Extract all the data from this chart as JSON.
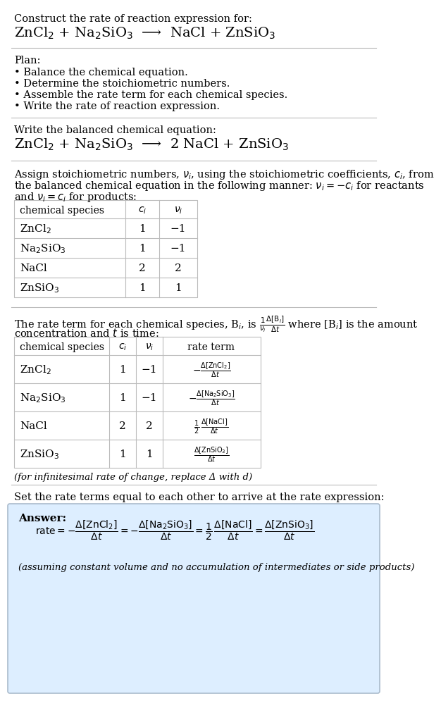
{
  "title_text": "Construct the rate of reaction expression for:",
  "reaction_unbalanced": "ZnCl$_2$ + Na$_2$SiO$_3$  ⟶  NaCl + ZnSiO$_3$",
  "plan_header": "Plan:",
  "plan_items": [
    "• Balance the chemical equation.",
    "• Determine the stoichiometric numbers.",
    "• Assemble the rate term for each chemical species.",
    "• Write the rate of reaction expression."
  ],
  "balanced_header": "Write the balanced chemical equation:",
  "reaction_balanced": "ZnCl$_2$ + Na$_2$SiO$_3$  ⟶  2 NaCl + ZnSiO$_3$",
  "stoich_intro_1": "Assign stoichiometric numbers, $\\nu_i$, using the stoichiometric coefficients, $c_i$, from",
  "stoich_intro_2": "the balanced chemical equation in the following manner: $\\nu_i = -c_i$ for reactants",
  "stoich_intro_3": "and $\\nu_i = c_i$ for products:",
  "table1_headers": [
    "chemical species",
    "$c_i$",
    "$\\nu_i$"
  ],
  "table1_rows": [
    [
      "ZnCl$_2$",
      "1",
      "−1"
    ],
    [
      "Na$_2$SiO$_3$",
      "1",
      "−1"
    ],
    [
      "NaCl",
      "2",
      "2"
    ],
    [
      "ZnSiO$_3$",
      "1",
      "1"
    ]
  ],
  "rate_intro_1": "The rate term for each chemical species, B$_i$, is $\\frac{1}{\\nu_i}\\frac{\\Delta[\\mathrm{B}_i]}{\\Delta t}$ where [B$_i$] is the amount",
  "rate_intro_2": "concentration and $t$ is time:",
  "table2_headers": [
    "chemical species",
    "$c_i$",
    "$\\nu_i$",
    "rate term"
  ],
  "table2_rows": [
    [
      "ZnCl$_2$",
      "1",
      "−1",
      "$-\\frac{\\Delta[\\mathrm{ZnCl_2}]}{\\Delta t}$"
    ],
    [
      "Na$_2$SiO$_3$",
      "1",
      "−1",
      "$-\\frac{\\Delta[\\mathrm{Na_2SiO_3}]}{\\Delta t}$"
    ],
    [
      "NaCl",
      "2",
      "2",
      "$\\frac{1}{2}\\,\\frac{\\Delta[\\mathrm{NaCl}]}{\\Delta t}$"
    ],
    [
      "ZnSiO$_3$",
      "1",
      "1",
      "$\\frac{\\Delta[\\mathrm{ZnSiO_3}]}{\\Delta t}$"
    ]
  ],
  "infinitesimal_note": "(for infinitesimal rate of change, replace Δ with d)",
  "final_intro": "Set the rate terms equal to each other to arrive at the rate expression:",
  "answer_label": "Answer:",
  "rate_expression": "$\\mathrm{rate} = -\\dfrac{\\Delta[\\mathrm{ZnCl_2}]}{\\Delta t} = -\\dfrac{\\Delta[\\mathrm{Na_2SiO_3}]}{\\Delta t} = \\dfrac{1}{2}\\,\\dfrac{\\Delta[\\mathrm{NaCl}]}{\\Delta t} = \\dfrac{\\Delta[\\mathrm{ZnSiO_3}]}{\\Delta t}$",
  "assumption_note": "(assuming constant volume and no accumulation of intermediates or side products)",
  "answer_bg": "#ddeeff",
  "answer_border": "#aabbcc",
  "line_color": "#bbbbbb"
}
